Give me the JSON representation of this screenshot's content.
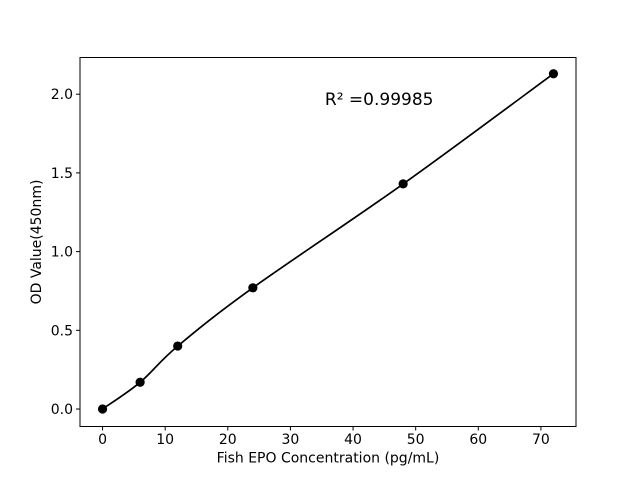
{
  "chart_data": {
    "type": "scatter",
    "title": "",
    "xlabel": "Fish EPO Concentration (pg/mL)",
    "ylabel": "OD Value(450nm)",
    "annotation": {
      "text": "R² =0.99985",
      "x": 35.5,
      "y": 1.93
    },
    "series": [
      {
        "name": "standard-curve",
        "x": [
          0,
          6,
          12,
          24,
          48,
          72
        ],
        "y": [
          0.0,
          0.17,
          0.4,
          0.77,
          1.43,
          2.13
        ],
        "marker": "circle",
        "smooth": true
      }
    ],
    "xlim": [
      -3.6,
      75.6
    ],
    "ylim": [
      -0.111,
      2.233
    ],
    "xticks": [
      0,
      10,
      20,
      30,
      40,
      50,
      60,
      70
    ],
    "xtick_labels": [
      "0",
      "10",
      "20",
      "30",
      "40",
      "50",
      "60",
      "70"
    ],
    "yticks": [
      0,
      0.5,
      1,
      1.5,
      2
    ],
    "ytick_labels": [
      "0.0",
      "0.5",
      "1.0",
      "1.5",
      "2.0"
    ],
    "grid": false,
    "legend": null,
    "background": "#ffffff",
    "axis_color": "#000000",
    "line_color": "#000000",
    "marker_color": "#000000",
    "text_color": "#000000"
  }
}
